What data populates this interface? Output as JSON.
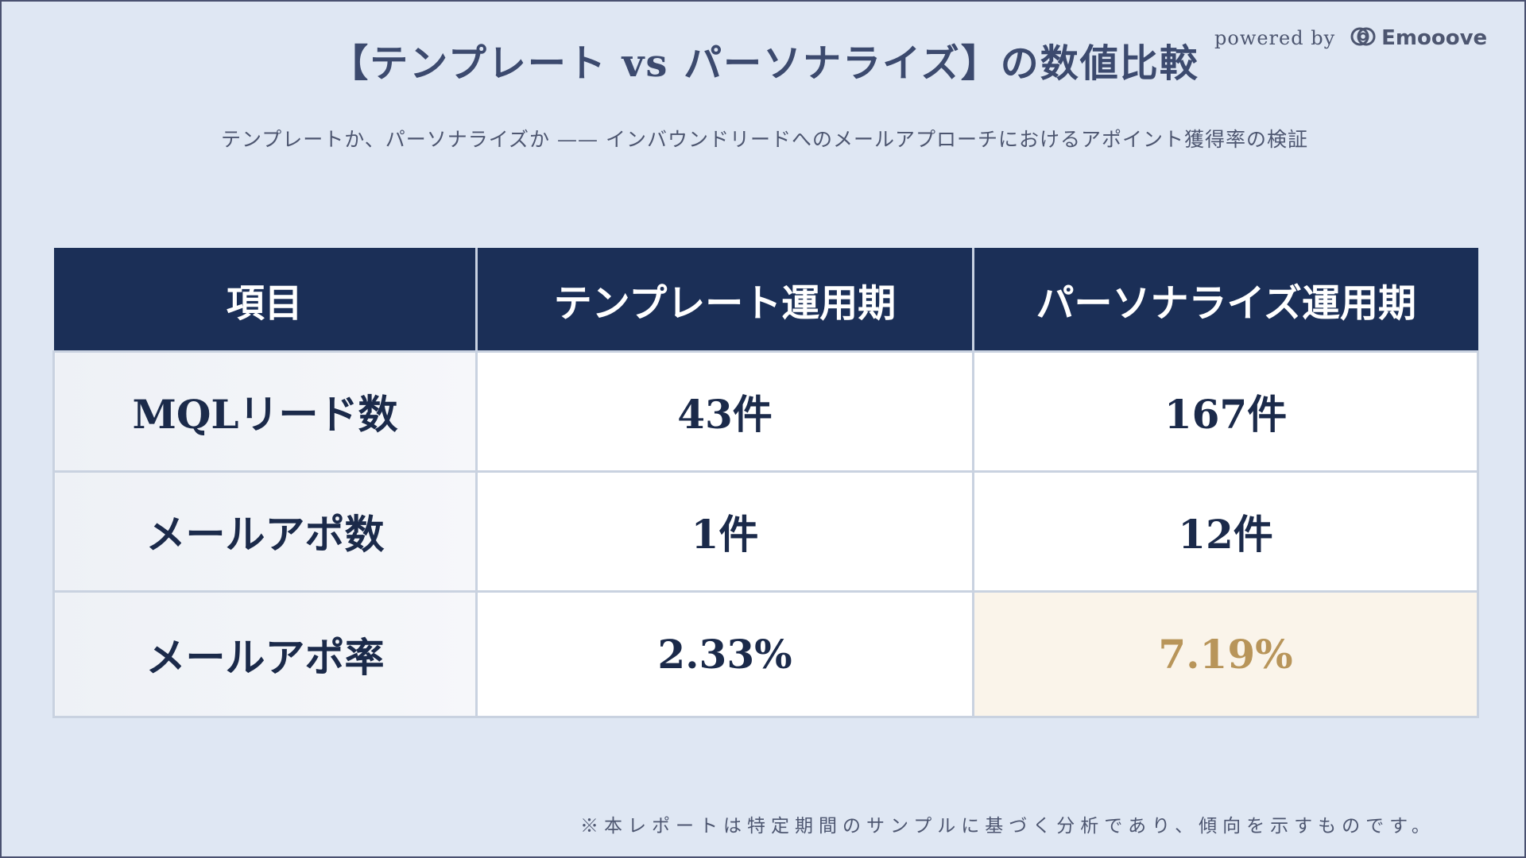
{
  "slide": {
    "title": "【テンプレート vs パーソナライズ】の数値比較",
    "subtitle": "テンプレートか、パーソナライズか —— インバウンドリードへのメールアプローチにおけるアポイント獲得率の検証",
    "powered_by": "powered by",
    "brand": "Emooove",
    "brand_icon": "emooove-logo-icon",
    "footnote": "※本レポートは特定期間のサンプルに基づく分析であり、傾向を示すものです。"
  },
  "table": {
    "headers": [
      "項目",
      "テンプレート運用期",
      "パーソナライズ運用期"
    ],
    "rows": [
      {
        "label": "MQLリード数",
        "template": "43件",
        "personalized": "167件"
      },
      {
        "label": "メールアポ数",
        "template": "1件",
        "personalized": "12件"
      },
      {
        "label": "メールアポ率",
        "template": "2.33%",
        "personalized": "7.19%"
      }
    ]
  },
  "colors": {
    "background": "#dfe7f3",
    "header_bg": "#1b2f57",
    "text_dark": "#1b2a4a",
    "highlight_bg": "#faf4ea",
    "highlight_text": "#b8955a"
  }
}
